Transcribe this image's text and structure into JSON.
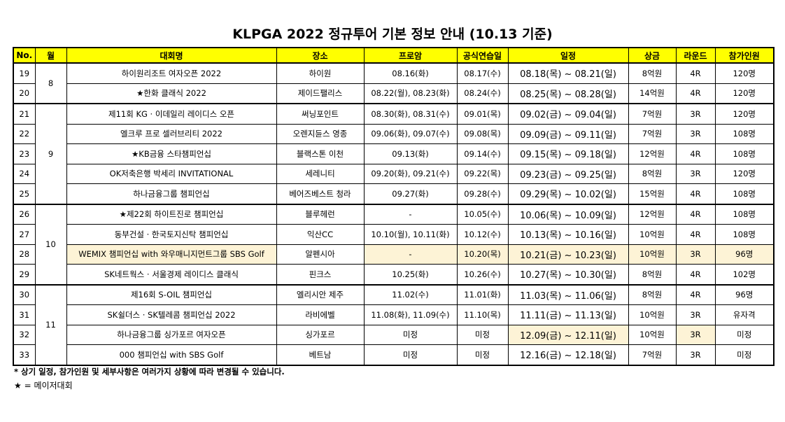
{
  "title": "KLPGA 2022 정규투어 기본 정보 안내 (10.13 기준)",
  "headers": [
    "No.",
    "월",
    "대회명",
    "장소",
    "프로암",
    "공식연습일",
    "일정",
    "상금",
    "라운드",
    "참가인원"
  ],
  "groups": [
    {
      "month": "8",
      "rows": [
        {
          "no": "19",
          "name": "하이원리조트 여자오픈 2022",
          "venue": "하이원",
          "proam": "08.16(화)",
          "practice": "08.17(수)",
          "schedule": "08.18(목) ~ 08.21(일)",
          "prize": "8억원",
          "round": "4R",
          "players": "120명",
          "hl": []
        },
        {
          "no": "20",
          "name": "★한화 클래식 2022",
          "venue": "제이드팰리스",
          "proam": "08.22(월), 08.23(화)",
          "practice": "08.24(수)",
          "schedule": "08.25(목) ~ 08.28(일)",
          "prize": "14억원",
          "round": "4R",
          "players": "120명",
          "hl": []
        }
      ]
    },
    {
      "month": "9",
      "rows": [
        {
          "no": "21",
          "name": "제11회 KG · 이데일리 레이디스 오픈",
          "venue": "써닝포인트",
          "proam": "08.30(화), 08.31(수)",
          "practice": "09.01(목)",
          "schedule": "09.02(금) ~ 09.04(일)",
          "prize": "7억원",
          "round": "3R",
          "players": "120명",
          "hl": []
        },
        {
          "no": "22",
          "name": "엘크루 프로 셀러브리티 2022",
          "venue": "오렌지듄스 영종",
          "proam": "09.06(화), 09.07(수)",
          "practice": "09.08(목)",
          "schedule": "09.09(금) ~ 09.11(일)",
          "prize": "7억원",
          "round": "3R",
          "players": "108명",
          "hl": []
        },
        {
          "no": "23",
          "name": "★KB금융 스타챔피언십",
          "venue": "블랙스톤 이천",
          "proam": "09.13(화)",
          "practice": "09.14(수)",
          "schedule": "09.15(목) ~ 09.18(일)",
          "prize": "12억원",
          "round": "4R",
          "players": "108명",
          "hl": []
        },
        {
          "no": "24",
          "name": "OK저축은행 박세리 INVITATIONAL",
          "venue": "세레니티",
          "proam": "09.20(화), 09.21(수)",
          "practice": "09.22(목)",
          "schedule": "09.23(금) ~ 09.25(일)",
          "prize": "8억원",
          "round": "3R",
          "players": "120명",
          "hl": []
        },
        {
          "no": "25",
          "name": "하나금융그룹 챔피언십",
          "venue": "베어즈베스트 청라",
          "proam": "09.27(화)",
          "practice": "09.28(수)",
          "schedule": "09.29(목) ~ 10.02(일)",
          "prize": "15억원",
          "round": "4R",
          "players": "108명",
          "hl": []
        }
      ]
    },
    {
      "month": "10",
      "rows": [
        {
          "no": "26",
          "name": "★제22회 하이트진로 챔피언십",
          "venue": "블루헤런",
          "proam": "-",
          "practice": "10.05(수)",
          "schedule": "10.06(목) ~ 10.09(일)",
          "prize": "12억원",
          "round": "4R",
          "players": "108명",
          "hl": []
        },
        {
          "no": "27",
          "name": "동부건설 · 한국토지신탁 챔피언십",
          "venue": "익산CC",
          "proam": "10.10(월), 10.11(화)",
          "practice": "10.12(수)",
          "schedule": "10.13(목) ~ 10.16(일)",
          "prize": "10억원",
          "round": "4R",
          "players": "108명",
          "hl": []
        },
        {
          "no": "28",
          "name": "WEMIX 챔피언십 with 와우매니지먼트그룹 SBS Golf",
          "venue": "알펜시아",
          "proam": "-",
          "practice": "10.20(목)",
          "schedule": "10.21(금) ~ 10.23(일)",
          "prize": "10억원",
          "round": "3R",
          "players": "96명",
          "hl": [
            "name",
            "proam",
            "practice",
            "schedule",
            "prize",
            "round",
            "players"
          ]
        },
        {
          "no": "29",
          "name": "SK네트웍스 · 서울경제 레이디스 클래식",
          "venue": "핀크스",
          "proam": "10.25(화)",
          "practice": "10.26(수)",
          "schedule": "10.27(목) ~ 10.30(일)",
          "prize": "8억원",
          "round": "4R",
          "players": "102명",
          "hl": []
        }
      ]
    },
    {
      "month": "11",
      "rows": [
        {
          "no": "30",
          "name": "제16회 S-OIL 챔피언십",
          "venue": "엘리시안 제주",
          "proam": "11.02(수)",
          "practice": "11.01(화)",
          "schedule": "11.03(목) ~ 11.06(일)",
          "prize": "8억원",
          "round": "4R",
          "players": "96명",
          "hl": []
        },
        {
          "no": "31",
          "name": "SK쉴더스 · SK텔레콤 챔피언십 2022",
          "venue": "라비에벨",
          "proam": "11.08(화), 11.09(수)",
          "practice": "11.10(목)",
          "schedule": "11.11(금) ~ 11.13(일)",
          "prize": "10억원",
          "round": "3R",
          "players": "유자격",
          "hl": []
        },
        {
          "no": "32",
          "name": "하나금융그룹 싱가포르 여자오픈",
          "venue": "싱가포르",
          "proam": "미정",
          "practice": "미정",
          "schedule": "12.09(금) ~ 12.11(일)",
          "prize": "10억원",
          "round": "3R",
          "players": "미정",
          "hl": [
            "schedule",
            "round"
          ]
        },
        {
          "no": "33",
          "name": "000 챔피언십 with SBS Golf",
          "venue": "베트남",
          "proam": "미정",
          "practice": "미정",
          "schedule": "12.16(금) ~ 12.18(일)",
          "prize": "7억원",
          "round": "3R",
          "players": "미정",
          "hl": []
        }
      ]
    }
  ],
  "note1": "* 상기 일정, 참가인원 및 세부사항은 여러가지 상황에 따라 변경될 수 있습니다.",
  "note2": "★ = 메이저대회"
}
